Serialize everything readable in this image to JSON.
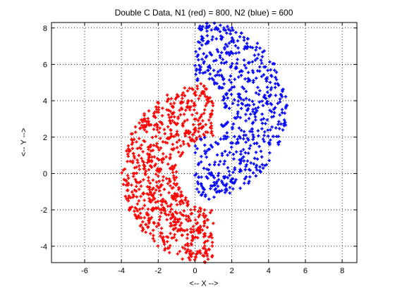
{
  "chart_data": {
    "type": "scatter",
    "title": "Double C Data, N1 (red) = 800, N2 (blue) = 600",
    "xlabel": "<-- X -->",
    "ylabel": "<-- Y -->",
    "xlim": [
      -7.8,
      8.8
    ],
    "ylim": [
      -4.9,
      8.3
    ],
    "xticks": [
      -6,
      -4,
      -2,
      0,
      2,
      4,
      6,
      8
    ],
    "yticks": [
      -4,
      -2,
      0,
      2,
      4,
      6,
      8
    ],
    "grid": true,
    "grid_style": "dotted",
    "marker": "plus",
    "series": [
      {
        "color": "#ff0000",
        "n": 800,
        "shape": "half-annulus",
        "center": [
          1,
          0
        ],
        "inner_radius": 2,
        "outer_radius": 5,
        "angle_range_deg": [
          90,
          270
        ],
        "note_visible_range": "points span roughly x from -4 to 1.5, y from -4.9 to 4.8"
      },
      {
        "color": "#0000ff",
        "n": 600,
        "shape": "half-annulus",
        "center": [
          0,
          3.5
        ],
        "inner_radius": 1.6,
        "outer_radius": 5,
        "angle_range_deg": [
          -90,
          90
        ],
        "note_visible_range": "points span roughly x from 0 to 5, y from -1.5 to 8.3"
      }
    ]
  }
}
